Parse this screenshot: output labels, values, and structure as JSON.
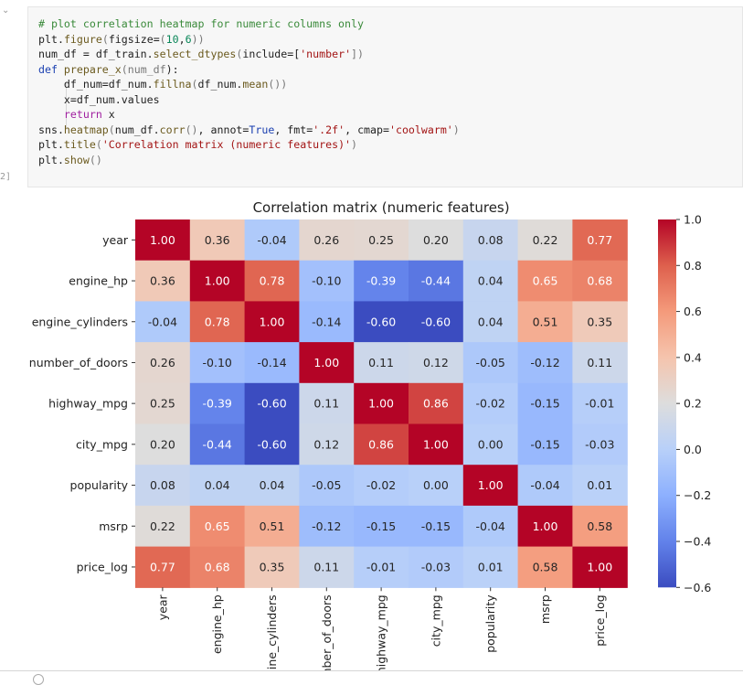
{
  "cell": {
    "execution_count": "2]",
    "collapse_icon": "chevron-down-icon",
    "code_lines": [
      [
        [
          "# plot correlation heatmap for numeric columns only",
          "com"
        ]
      ],
      [
        [
          "plt",
          "var"
        ],
        [
          ".",
          "var"
        ],
        [
          "figure",
          "fn"
        ],
        [
          "(",
          "par"
        ],
        [
          "figsize",
          "var"
        ],
        [
          "=",
          "var"
        ],
        [
          "(",
          "par"
        ],
        [
          "10",
          "num"
        ],
        [
          ",",
          "var"
        ],
        [
          "6",
          "num"
        ],
        [
          "))",
          "par"
        ]
      ],
      [
        [
          "num_df = df_train.",
          "var"
        ],
        [
          "select_dtypes",
          "fn"
        ],
        [
          "(",
          "par"
        ],
        [
          "include=[",
          "var"
        ],
        [
          "'number'",
          "str"
        ],
        [
          "])",
          "par"
        ]
      ],
      [
        [
          "def ",
          "kw"
        ],
        [
          "prepare_x",
          "fn"
        ],
        [
          "(",
          "par"
        ],
        [
          "num_df",
          "par"
        ],
        [
          "):",
          "var"
        ]
      ],
      [
        [
          "    df_num=df_num.",
          "var"
        ],
        [
          "fillna",
          "fn"
        ],
        [
          "(",
          "par"
        ],
        [
          "df_num.",
          "var"
        ],
        [
          "mean",
          "fn"
        ],
        [
          "())",
          "par"
        ]
      ],
      [
        [
          "    x=df_num.values",
          "var"
        ]
      ],
      [
        [
          "    ",
          "var"
        ],
        [
          "return",
          "ret"
        ],
        [
          " x",
          "var"
        ]
      ],
      [
        [
          "sns.",
          "var"
        ],
        [
          "heatmap",
          "fn"
        ],
        [
          "(",
          "par"
        ],
        [
          "num_df.",
          "var"
        ],
        [
          "corr",
          "fn"
        ],
        [
          "()",
          "par"
        ],
        [
          ", annot=",
          "var"
        ],
        [
          "True",
          "kw"
        ],
        [
          ", fmt=",
          "var"
        ],
        [
          "'.2f'",
          "str"
        ],
        [
          ", cmap=",
          "var"
        ],
        [
          "'coolwarm'",
          "str"
        ],
        [
          ")",
          "par"
        ]
      ],
      [
        [
          "plt.",
          "var"
        ],
        [
          "title",
          "fn"
        ],
        [
          "(",
          "par"
        ],
        [
          "'Correlation matrix (numeric features)'",
          "str"
        ],
        [
          ")",
          "par"
        ]
      ],
      [
        [
          "plt.",
          "var"
        ],
        [
          "show",
          "fn"
        ],
        [
          "()",
          "par"
        ]
      ]
    ]
  },
  "chart_data": {
    "type": "heatmap",
    "title": "Correlation matrix (numeric features)",
    "colormap": "coolwarm",
    "row_labels": [
      "year",
      "engine_hp",
      "engine_cylinders",
      "number_of_doors",
      "highway_mpg",
      "city_mpg",
      "popularity",
      "msrp",
      "price_log"
    ],
    "col_labels": [
      "year",
      "engine_hp",
      "engine_cylinders",
      "number_of_doors",
      "highway_mpg",
      "city_mpg",
      "popularity",
      "msrp",
      "price_log"
    ],
    "values": [
      [
        1.0,
        0.36,
        -0.04,
        0.26,
        0.25,
        0.2,
        0.08,
        0.22,
        0.77
      ],
      [
        0.36,
        1.0,
        0.78,
        -0.1,
        -0.39,
        -0.44,
        0.04,
        0.65,
        0.68
      ],
      [
        -0.04,
        0.78,
        1.0,
        -0.14,
        -0.6,
        -0.6,
        0.04,
        0.51,
        0.35
      ],
      [
        0.26,
        -0.1,
        -0.14,
        1.0,
        0.11,
        0.12,
        -0.05,
        -0.12,
        0.11
      ],
      [
        0.25,
        -0.39,
        -0.6,
        0.11,
        1.0,
        0.86,
        -0.02,
        -0.15,
        -0.01
      ],
      [
        0.2,
        -0.44,
        -0.6,
        0.12,
        0.86,
        1.0,
        0.0,
        -0.15,
        -0.03
      ],
      [
        0.08,
        0.04,
        0.04,
        -0.05,
        -0.02,
        0.0,
        1.0,
        -0.04,
        0.01
      ],
      [
        0.22,
        0.65,
        0.51,
        -0.12,
        -0.15,
        -0.15,
        -0.04,
        1.0,
        0.58
      ],
      [
        0.77,
        0.68,
        0.35,
        0.11,
        -0.01,
        -0.03,
        0.01,
        0.58,
        1.0
      ]
    ],
    "colorbar_range": [
      -0.6,
      1.0
    ],
    "colorbar_ticks": [
      "1.0",
      "0.8",
      "0.6",
      "0.4",
      "0.2",
      "0.0",
      "−0.2",
      "−0.4",
      "−0.6"
    ],
    "colorbar_tick_values": [
      1.0,
      0.8,
      0.6,
      0.4,
      0.2,
      0.0,
      -0.2,
      -0.4,
      -0.6
    ]
  }
}
